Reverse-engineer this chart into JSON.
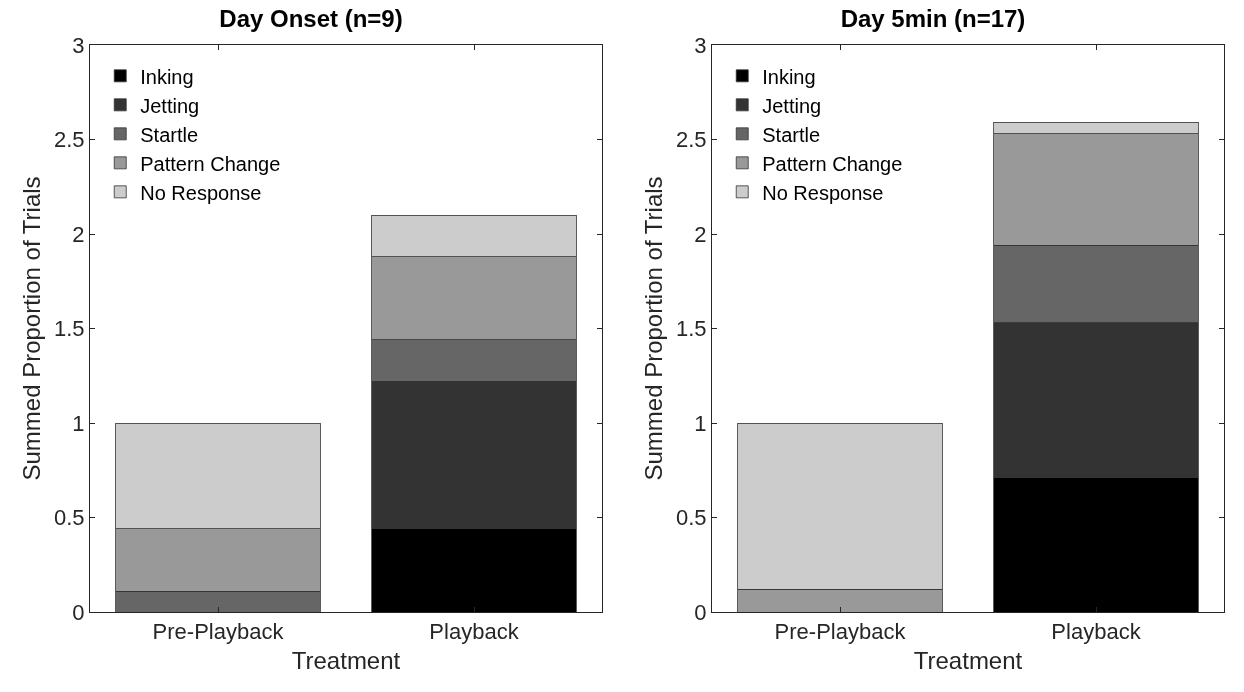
{
  "chart_data": [
    {
      "type": "bar",
      "title": "Day Onset (n=9)",
      "xlabel": "Treatment",
      "ylabel": "Summed Proportion of Trials",
      "categories": [
        "Pre-Playback",
        "Playback"
      ],
      "stacked": true,
      "ylim": [
        0,
        3
      ],
      "yticks": [
        0,
        0.5,
        1,
        1.5,
        2,
        2.5,
        3
      ],
      "grid": false,
      "legend": "top left",
      "series": [
        {
          "name": "Inking",
          "color": "#000000",
          "values": [
            0,
            0.44
          ]
        },
        {
          "name": "Jetting",
          "color": "#333333",
          "values": [
            0,
            0.78
          ]
        },
        {
          "name": "Startle",
          "color": "#666666",
          "values": [
            0.11,
            0.22
          ]
        },
        {
          "name": "Pattern Change",
          "color": "#999999",
          "values": [
            0.33,
            0.44
          ]
        },
        {
          "name": "No Response",
          "color": "#cccccc",
          "values": [
            0.56,
            0.22
          ]
        }
      ]
    },
    {
      "type": "bar",
      "title": "Day 5min (n=17)",
      "xlabel": "Treatment",
      "ylabel": "Summed Proportion of Trials",
      "categories": [
        "Pre-Playback",
        "Playback"
      ],
      "stacked": true,
      "ylim": [
        0,
        3
      ],
      "yticks": [
        0,
        0.5,
        1,
        1.5,
        2,
        2.5,
        3
      ],
      "grid": false,
      "legend": "top left",
      "series": [
        {
          "name": "Inking",
          "color": "#000000",
          "values": [
            0,
            0.71
          ]
        },
        {
          "name": "Jetting",
          "color": "#333333",
          "values": [
            0,
            0.82
          ]
        },
        {
          "name": "Startle",
          "color": "#666666",
          "values": [
            0,
            0.41
          ]
        },
        {
          "name": "Pattern Change",
          "color": "#999999",
          "values": [
            0.12,
            0.59
          ]
        },
        {
          "name": "No Response",
          "color": "#cccccc",
          "values": [
            0.88,
            0.06
          ]
        }
      ]
    }
  ]
}
